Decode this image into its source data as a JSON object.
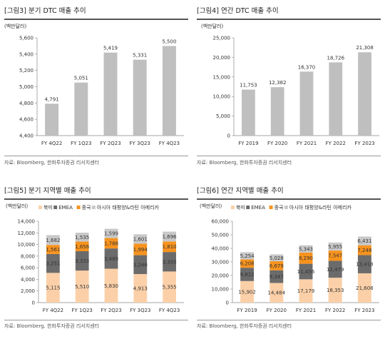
{
  "panels": [
    {
      "title": "[그림3] 분기 DTC 매출 추이",
      "source": "자료: Bloomberg, 한화투자증권 리서치센터",
      "chart_data": {
        "type": "bar",
        "unit_label": "(백만달러)",
        "categories": [
          "FY 4Q22",
          "FY 1Q23",
          "FY 2Q23",
          "FY 3Q23",
          "FY 4Q23"
        ],
        "values": [
          4791,
          5051,
          5419,
          5331,
          5500
        ],
        "value_labels": [
          "4,791",
          "5,051",
          "5,419",
          "5,331",
          "5,500"
        ],
        "ylim": [
          4400,
          5600
        ],
        "yticks": [
          "4,400",
          "4,600",
          "4,800",
          "5,000",
          "5,200",
          "5,400",
          "5,600"
        ],
        "bar_color": "#bfbfbf"
      }
    },
    {
      "title": "[그림4] 연간 DTC 매출 추이",
      "source": "자료: Bloomberg, 한화투자증권 리서치센터",
      "chart_data": {
        "type": "bar",
        "unit_label": "(백만달러)",
        "categories": [
          "FY 2019",
          "FY 2020",
          "FY 2021",
          "FY 2022",
          "FY 2023"
        ],
        "values": [
          11753,
          12382,
          16370,
          18726,
          21308
        ],
        "value_labels": [
          "11,753",
          "12,382",
          "16,370",
          "18,726",
          "21,308"
        ],
        "ylim": [
          0,
          25000
        ],
        "yticks": [
          "0",
          "5,000",
          "10,000",
          "15,000",
          "20,000",
          "25,000"
        ],
        "bar_color": "#bfbfbf"
      }
    },
    {
      "title": "[그림5] 분기 지역별 매출 추이",
      "source": "자료: Bloomberg, 한화투자증권 리서치센터",
      "chart_data": {
        "type": "bar",
        "stacked": true,
        "unit_label": "(백만달러)",
        "categories": [
          "FY 4Q22",
          "FY 1Q23",
          "FY 2Q23",
          "FY 3Q23",
          "FY 4Q23"
        ],
        "series": [
          {
            "name": "북미",
            "color": "#fbd0a8",
            "values": [
              5115,
              5510,
              5830,
              4913,
              5355
            ],
            "labels": [
              "5,115",
              "5,510",
              "5,830",
              "4,913",
              "5,355"
            ]
          },
          {
            "name": "EMEA",
            "color": "#6b6b6b",
            "values": [
              3251,
              3333,
              3489,
              3246,
              3350
            ],
            "labels": [
              "3,251",
              "3,333",
              "3,489",
              "3,246",
              "3,350"
            ]
          },
          {
            "name": "중국",
            "color": "#f7931e",
            "values": [
              1561,
              1656,
              1788,
              1994,
              1810
            ],
            "labels": [
              "1,561",
              "1,656",
              "1,788",
              "1,994",
              "1,810"
            ]
          },
          {
            "name": "아시아 태평양&라틴 아메리카",
            "color": "#c8c8c8",
            "values": [
              1682,
              1535,
              1599,
              1601,
              1696
            ],
            "labels": [
              "1,682",
              "1,535",
              "1,599",
              "1,601",
              "1,696"
            ]
          }
        ],
        "ylim": [
          0,
          14000
        ],
        "yticks": [
          "0",
          "2,000",
          "4,000",
          "6,000",
          "8,000",
          "10,000",
          "12,000",
          "14,000"
        ],
        "legend_position": "top"
      }
    },
    {
      "title": "[그림6] 연간 지역별 매출 추이",
      "source": "자료: Bloomberg, 한화투자증권 리서치센터",
      "chart_data": {
        "type": "bar",
        "stacked": true,
        "unit_label": "(백만달러)",
        "categories": [
          "FY 2019",
          "FY 2020",
          "FY 2021",
          "FY 2022",
          "FY 2023"
        ],
        "series": [
          {
            "name": "북미",
            "color": "#fbd0a8",
            "values": [
              15902,
              14484,
              17179,
              18353,
              21608
            ],
            "labels": [
              "15,902",
              "14,484",
              "17,179",
              "18,353",
              "21,608"
            ]
          },
          {
            "name": "EMEA",
            "color": "#6b6b6b",
            "values": [
              9812,
              9347,
              11456,
              12479,
              13418
            ],
            "labels": [
              "9,812",
              "9,347",
              "11,456",
              "12,479",
              "13,418"
            ]
          },
          {
            "name": "중국",
            "color": "#f7931e",
            "values": [
              6208,
              6679,
              8290,
              7547,
              7248
            ],
            "labels": [
              "6,208",
              "6,679",
              "8,290",
              "7,547",
              "7,248"
            ]
          },
          {
            "name": "아시아 태평양&라틴 아메리카",
            "color": "#c8c8c8",
            "values": [
              5254,
              5028,
              5343,
              5955,
              6431
            ],
            "labels": [
              "5,254",
              "5,028",
              "5,343",
              "5,955",
              "6,431"
            ]
          }
        ],
        "ylim": [
          0,
          60000
        ],
        "yticks": [
          "0",
          "10,000",
          "20,000",
          "30,000",
          "40,000",
          "50,000",
          "60,000"
        ],
        "legend_position": "top"
      }
    }
  ]
}
